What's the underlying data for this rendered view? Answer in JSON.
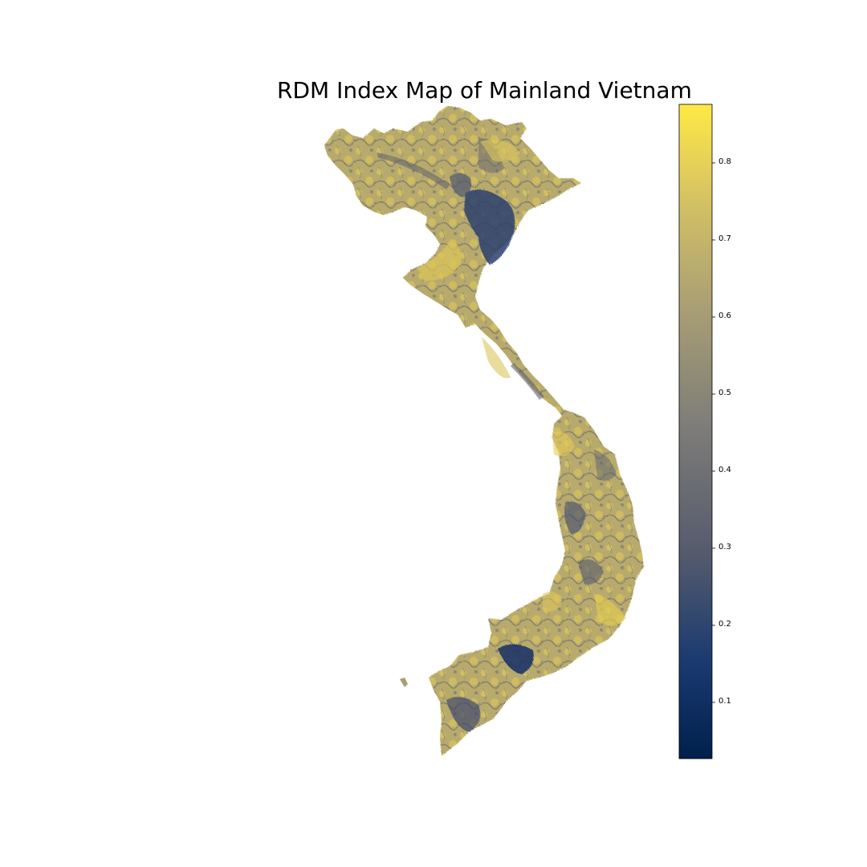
{
  "figure": {
    "title": "RDM Index Map of Mainland Vietnam"
  },
  "colorbar": {
    "cmap": "cividis",
    "min": 0.027,
    "max": 0.876,
    "ticks": [
      {
        "value": 0.1,
        "label": "0.1"
      },
      {
        "value": 0.2,
        "label": "0.2"
      },
      {
        "value": 0.3,
        "label": "0.3"
      },
      {
        "value": 0.4,
        "label": "0.4"
      },
      {
        "value": 0.5,
        "label": "0.5"
      },
      {
        "value": 0.6,
        "label": "0.6"
      },
      {
        "value": 0.7,
        "label": "0.7"
      },
      {
        "value": 0.8,
        "label": "0.8"
      }
    ],
    "colors": {
      "low": "#00204c",
      "q1": "#1b3a70",
      "q2": "#575c6d",
      "mid": "#7c7b78",
      "q3": "#a69d75",
      "q4": "#d3c164",
      "high": "#ffe945"
    }
  }
}
